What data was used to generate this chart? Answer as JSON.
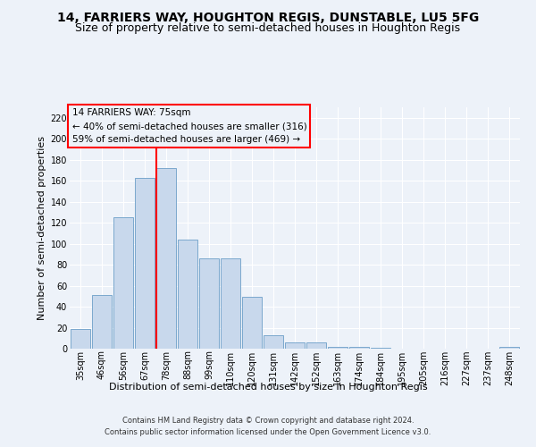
{
  "title1": "14, FARRIERS WAY, HOUGHTON REGIS, DUNSTABLE, LU5 5FG",
  "title2": "Size of property relative to semi-detached houses in Houghton Regis",
  "xlabel": "Distribution of semi-detached houses by size in Houghton Regis",
  "ylabel": "Number of semi-detached properties",
  "categories": [
    "35sqm",
    "46sqm",
    "56sqm",
    "67sqm",
    "78sqm",
    "88sqm",
    "99sqm",
    "110sqm",
    "120sqm",
    "131sqm",
    "142sqm",
    "152sqm",
    "163sqm",
    "174sqm",
    "184sqm",
    "195sqm",
    "205sqm",
    "216sqm",
    "227sqm",
    "237sqm",
    "248sqm"
  ],
  "values": [
    19,
    51,
    125,
    163,
    172,
    104,
    86,
    86,
    49,
    13,
    6,
    6,
    2,
    2,
    1,
    0,
    0,
    0,
    0,
    0,
    2
  ],
  "bar_color": "#c8d8ec",
  "bar_edge_color": "#6b9ec8",
  "highlight_bar_index": 4,
  "annotation_title": "14 FARRIERS WAY: 75sqm",
  "annotation_line1": "← 40% of semi-detached houses are smaller (316)",
  "annotation_line2": "59% of semi-detached houses are larger (469) →",
  "footer1": "Contains HM Land Registry data © Crown copyright and database right 2024.",
  "footer2": "Contains public sector information licensed under the Open Government Licence v3.0.",
  "ylim": [
    0,
    230
  ],
  "yticks": [
    0,
    20,
    40,
    60,
    80,
    100,
    120,
    140,
    160,
    180,
    200,
    220
  ],
  "bg_color": "#edf2f9",
  "grid_color": "#ffffff",
  "title_fontsize": 10,
  "subtitle_fontsize": 9,
  "axis_label_fontsize": 8,
  "tick_fontsize": 7,
  "footer_fontsize": 6,
  "annotation_fontsize": 7.5
}
